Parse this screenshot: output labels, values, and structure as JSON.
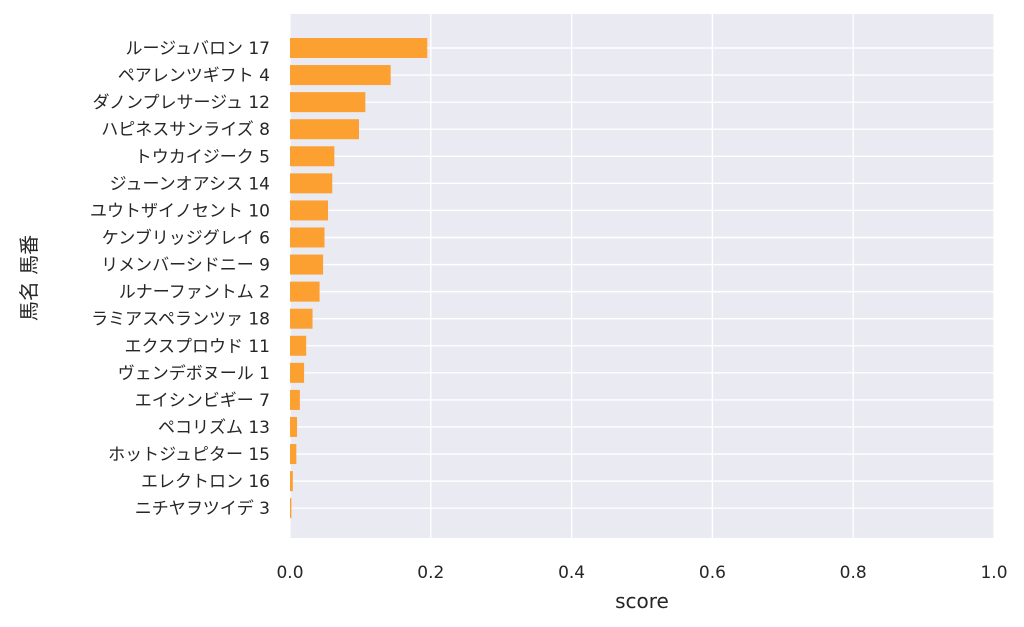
{
  "chart_data": {
    "type": "bar",
    "orientation": "horizontal",
    "categories": [
      "ルージュバロン 17",
      "ペアレンツギフト 4",
      "ダノンプレサージュ 12",
      "ハピネスサンライズ 8",
      "トウカイジーク 5",
      "ジューンオアシス 14",
      "ユウトザイノセント 10",
      "ケンブリッジグレイ 6",
      "リメンバーシドニー 9",
      "ルナーファントム 2",
      "ラミアスペランツァ 18",
      "エクスプロウド 11",
      "ヴェンデボヌール 1",
      "エイシンビギー 7",
      "ペコリズム 13",
      "ホットジュピター 15",
      "エレクトロン 16",
      "ニチヤヲツイデ 3"
    ],
    "values": [
      0.195,
      0.143,
      0.107,
      0.098,
      0.063,
      0.06,
      0.054,
      0.049,
      0.047,
      0.042,
      0.032,
      0.023,
      0.02,
      0.014,
      0.01,
      0.009,
      0.004,
      0.002
    ],
    "xlabel": "score",
    "ylabel": "馬名 馬番",
    "xlim": [
      0,
      1.0
    ],
    "xticks": [
      "0.0",
      "0.2",
      "0.4",
      "0.6",
      "0.8",
      "1.0"
    ],
    "grid": true,
    "bar_color": "#fca032",
    "background_color": "#eaeaf2"
  }
}
